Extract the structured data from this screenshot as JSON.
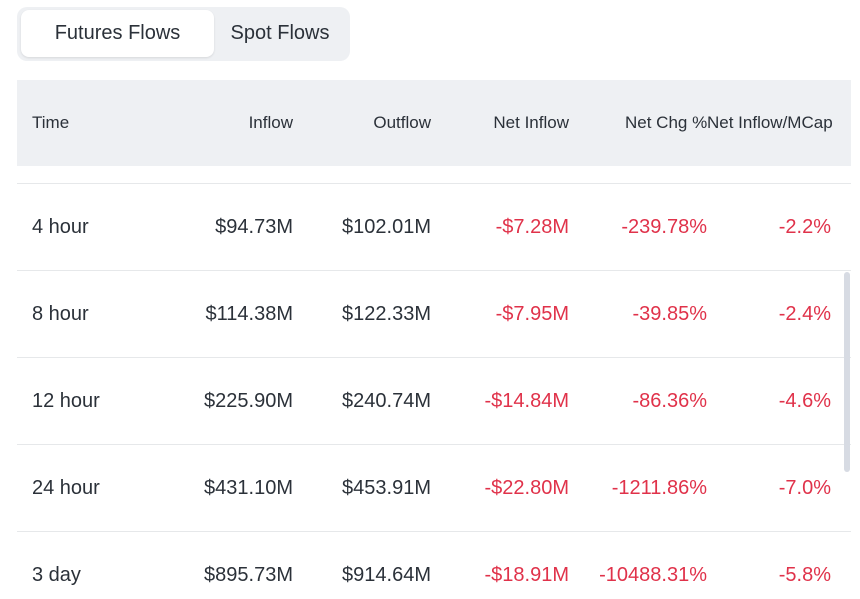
{
  "tabs": [
    {
      "label": "Futures Flows",
      "active": true
    },
    {
      "label": "Spot Flows",
      "active": false
    }
  ],
  "table": {
    "headers": [
      "Time",
      "Inflow",
      "Outflow",
      "Net Inflow",
      "Net Chg %",
      "Net Inflow/MCap"
    ],
    "rows": [
      {
        "time": "4 hour",
        "inflow": "$94.73M",
        "outflow": "$102.01M",
        "net_inflow": "-$7.28M",
        "net_chg": "-239.78%",
        "net_mcap": "-2.2%"
      },
      {
        "time": "8 hour",
        "inflow": "$114.38M",
        "outflow": "$122.33M",
        "net_inflow": "-$7.95M",
        "net_chg": "-39.85%",
        "net_mcap": "-2.4%"
      },
      {
        "time": "12 hour",
        "inflow": "$225.90M",
        "outflow": "$240.74M",
        "net_inflow": "-$14.84M",
        "net_chg": "-86.36%",
        "net_mcap": "-4.6%"
      },
      {
        "time": "24 hour",
        "inflow": "$431.10M",
        "outflow": "$453.91M",
        "net_inflow": "-$22.80M",
        "net_chg": "-1211.86%",
        "net_mcap": "-7.0%"
      },
      {
        "time": "3 day",
        "inflow": "$895.73M",
        "outflow": "$914.64M",
        "net_inflow": "-$18.91M",
        "net_chg": "-10488.31%",
        "net_mcap": "-5.8%"
      }
    ]
  },
  "colors": {
    "negative": "#e0324a",
    "text": "#2b3139",
    "header_bg": "#eef0f3"
  }
}
